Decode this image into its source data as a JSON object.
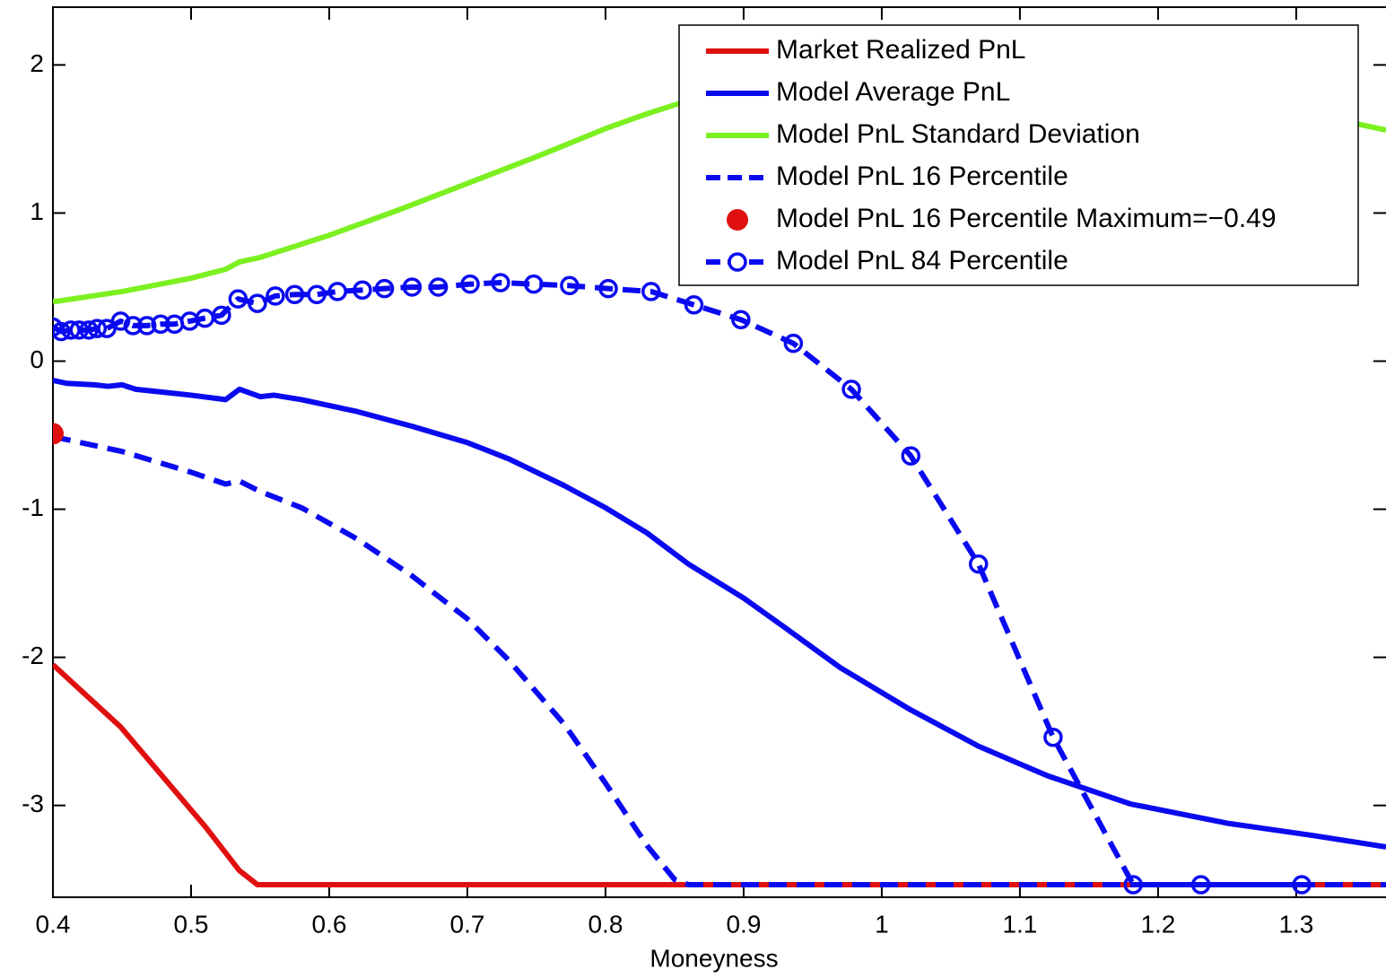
{
  "chart_data": {
    "type": "line",
    "xlabel": "Moneyness",
    "xlim": [
      0.4,
      1.365
    ],
    "ylim": [
      -3.62,
      2.39
    ],
    "xticks": [
      0.4,
      0.5,
      0.6,
      0.7,
      0.8,
      0.9,
      1,
      1.1,
      1.2,
      1.3
    ],
    "yticks": [
      -3,
      -2,
      -1,
      0,
      1,
      2
    ],
    "legend": "upper right",
    "series": [
      {
        "name": "Market Realized PnL",
        "color": "#e01010",
        "style": "solid",
        "marker": "none",
        "x": [
          0.4,
          0.449,
          0.51,
          0.535,
          0.548,
          1.365
        ],
        "values": [
          -2.05,
          -2.47,
          -3.14,
          -3.44,
          -3.535,
          -3.535
        ]
      },
      {
        "name": "Model Average PnL",
        "color": "#0a0af0",
        "style": "solid",
        "marker": "none",
        "x": [
          0.4,
          0.41,
          0.43,
          0.44,
          0.45,
          0.46,
          0.48,
          0.5,
          0.525,
          0.535,
          0.55,
          0.56,
          0.58,
          0.62,
          0.66,
          0.7,
          0.73,
          0.77,
          0.8,
          0.83,
          0.86,
          0.9,
          0.93,
          0.97,
          1.02,
          1.07,
          1.12,
          1.18,
          1.25,
          1.31,
          1.365
        ],
        "values": [
          -0.13,
          -0.15,
          -0.16,
          -0.17,
          -0.16,
          -0.19,
          -0.21,
          -0.23,
          -0.26,
          -0.19,
          -0.24,
          -0.23,
          -0.26,
          -0.34,
          -0.44,
          -0.55,
          -0.66,
          -0.84,
          -0.99,
          -1.16,
          -1.37,
          -1.6,
          -1.8,
          -2.07,
          -2.35,
          -2.6,
          -2.8,
          -2.99,
          -3.12,
          -3.2,
          -3.28
        ]
      },
      {
        "name": "Model PnL Standard Deviation",
        "color": "#7cf020",
        "style": "solid",
        "marker": "none",
        "x": [
          0.4,
          0.45,
          0.5,
          0.525,
          0.535,
          0.55,
          0.6,
          0.65,
          0.7,
          0.75,
          0.8,
          0.83,
          0.86,
          0.9,
          0.95,
          1.02,
          1.1,
          1.17,
          1.25,
          1.32,
          1.365
        ],
        "values": [
          0.4,
          0.47,
          0.56,
          0.62,
          0.67,
          0.7,
          0.85,
          1.02,
          1.2,
          1.38,
          1.57,
          1.67,
          1.76,
          1.84,
          1.89,
          1.91,
          1.87,
          1.82,
          1.71,
          1.65,
          1.56
        ]
      },
      {
        "name": "Model PnL 16 Percentile",
        "color": "#0a0af0",
        "style": "dashed",
        "marker": "none",
        "x": [
          0.4,
          0.45,
          0.5,
          0.525,
          0.535,
          0.55,
          0.58,
          0.62,
          0.66,
          0.7,
          0.73,
          0.77,
          0.8,
          0.83,
          0.85,
          0.86,
          1.365
        ],
        "values": [
          -0.51,
          -0.61,
          -0.75,
          -0.83,
          -0.81,
          -0.88,
          -0.99,
          -1.2,
          -1.45,
          -1.74,
          -2.02,
          -2.45,
          -2.85,
          -3.27,
          -3.5,
          -3.535,
          -3.535
        ]
      },
      {
        "name": "Model PnL 16 Percentile Maximum=−0.49",
        "color": "#e01010",
        "style": "none",
        "marker": "filled",
        "x": [
          0.4
        ],
        "values": [
          -0.49
        ]
      },
      {
        "name": "Model PnL 84 Percentile",
        "color": "#0a0af0",
        "style": "dashed",
        "marker": "open",
        "x": [
          0.4,
          0.406,
          0.413,
          0.419,
          0.426,
          0.432,
          0.439,
          0.449,
          0.458,
          0.468,
          0.478,
          0.488,
          0.499,
          0.51,
          0.522,
          0.534,
          0.548,
          0.561,
          0.575,
          0.591,
          0.606,
          0.624,
          0.64,
          0.66,
          0.679,
          0.702,
          0.724,
          0.748,
          0.774,
          0.802,
          0.833,
          0.864,
          0.898,
          0.936,
          0.978,
          1.021,
          1.07,
          1.124,
          1.182,
          1.231,
          1.304
        ],
        "values": [
          0.23,
          0.2,
          0.21,
          0.21,
          0.21,
          0.22,
          0.22,
          0.27,
          0.24,
          0.24,
          0.25,
          0.25,
          0.27,
          0.29,
          0.31,
          0.42,
          0.39,
          0.44,
          0.45,
          0.45,
          0.47,
          0.48,
          0.49,
          0.5,
          0.5,
          0.52,
          0.53,
          0.52,
          0.51,
          0.49,
          0.47,
          0.38,
          0.28,
          0.12,
          -0.19,
          -0.64,
          -1.37,
          -2.54,
          -3.535,
          -3.535,
          -3.535
        ]
      }
    ]
  }
}
